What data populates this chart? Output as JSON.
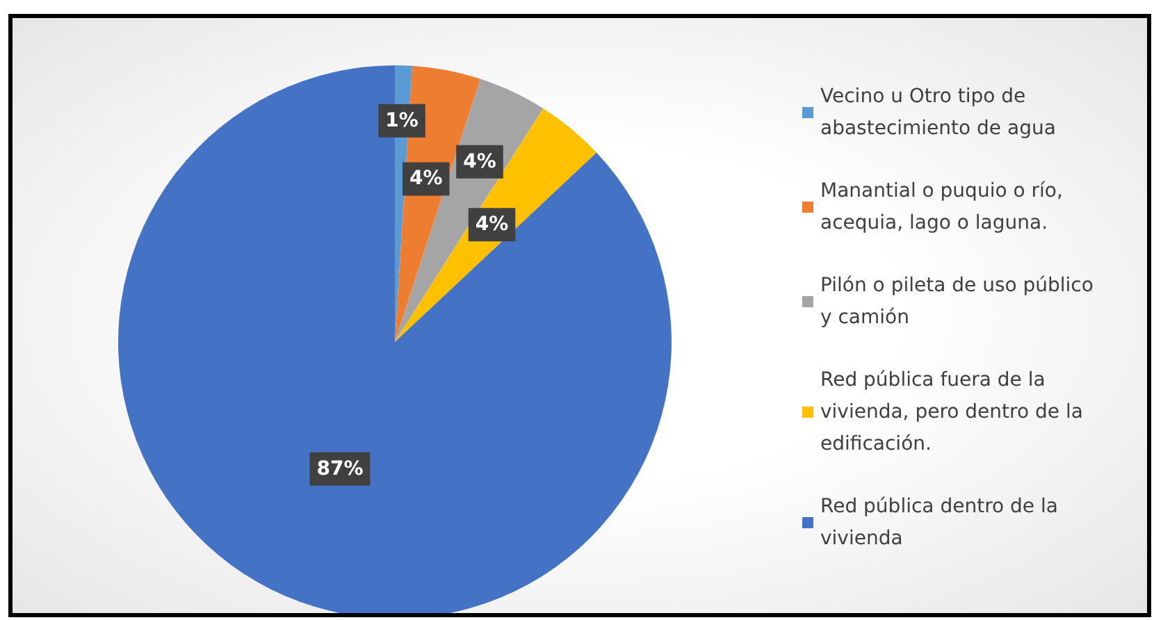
{
  "chart_data": {
    "type": "pie",
    "categories": [
      "Vecino u Otro tipo de abastecimiento de agua",
      "Manantial o puquio o río, acequia, lago o laguna.",
      "Pilón o pileta de uso público y camión",
      "Red pública fuera de la vivienda, pero dentro de la edificación.",
      "Red pública dentro de la vivienda"
    ],
    "values": [
      1,
      4,
      4,
      4,
      87
    ],
    "colors": [
      "#5b9bd5",
      "#ed7d31",
      "#a5a5a5",
      "#ffc000",
      "#4472c4"
    ],
    "value_labels": [
      "1%",
      "4%",
      "4%",
      "4%",
      "87%"
    ],
    "legend": "right"
  }
}
